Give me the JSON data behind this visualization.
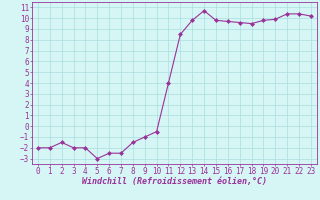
{
  "x": [
    0,
    1,
    2,
    3,
    4,
    5,
    6,
    7,
    8,
    9,
    10,
    11,
    12,
    13,
    14,
    15,
    16,
    17,
    18,
    19,
    20,
    21,
    22,
    23
  ],
  "y": [
    -2,
    -2,
    -1.5,
    -2,
    -2,
    -3,
    -2.5,
    -2.5,
    -1.5,
    -1,
    -0.5,
    4,
    8.5,
    9.8,
    10.7,
    9.8,
    9.7,
    9.6,
    9.5,
    9.8,
    9.9,
    10.4,
    10.4,
    10.2
  ],
  "line_color": "#993399",
  "marker": "D",
  "markersize": 2.0,
  "linewidth": 0.8,
  "bg_color": "#d6f5f5",
  "grid_color": "#aadddd",
  "xlabel": "Windchill (Refroidissement éolien,°C)",
  "xlabel_fontsize": 6.0,
  "tick_fontsize": 5.5,
  "xlim": [
    -0.5,
    23.5
  ],
  "ylim": [
    -3.5,
    11.5
  ],
  "yticks": [
    -3,
    -2,
    -1,
    0,
    1,
    2,
    3,
    4,
    5,
    6,
    7,
    8,
    9,
    10,
    11
  ],
  "xticks": [
    0,
    1,
    2,
    3,
    4,
    5,
    6,
    7,
    8,
    9,
    10,
    11,
    12,
    13,
    14,
    15,
    16,
    17,
    18,
    19,
    20,
    21,
    22,
    23
  ]
}
